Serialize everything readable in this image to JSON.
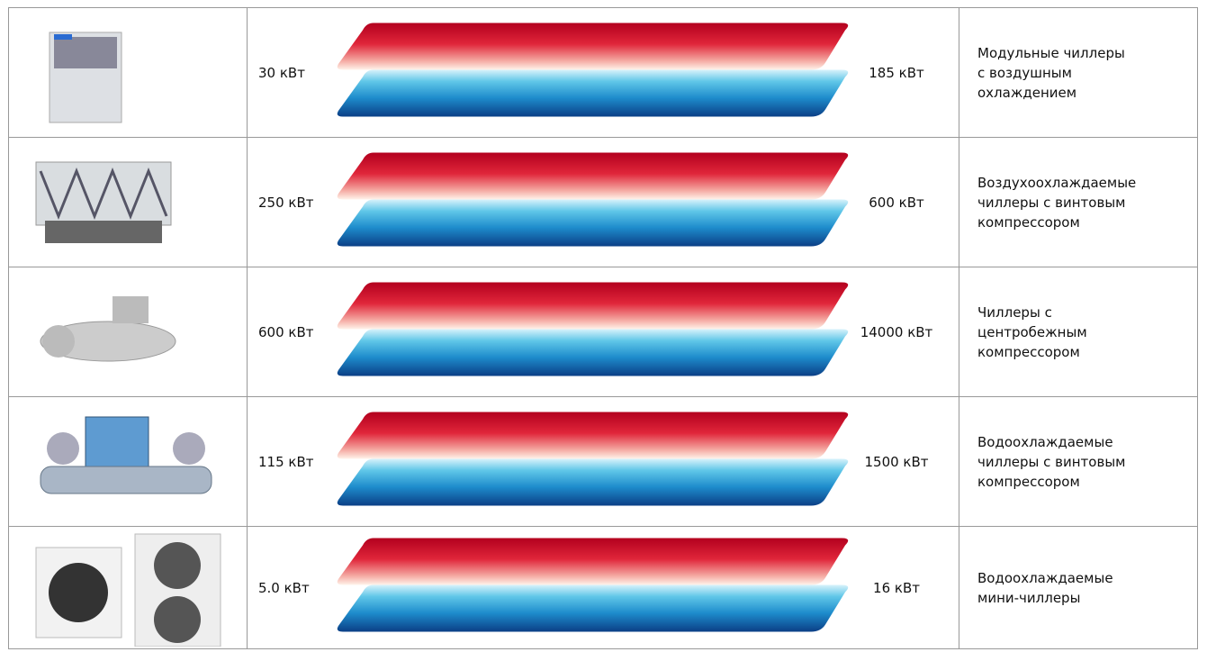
{
  "table": {
    "rows": [
      {
        "min": "30 кВт",
        "max": "185 кВт",
        "description": [
          "Модульные чиллеры",
          "с воздушным",
          "охлаждением"
        ]
      },
      {
        "min": "250 кВт",
        "max": "600 кВт",
        "description": [
          "Воздухоохлаждаемые",
          "чиллеры с винтовым",
          "компрессором"
        ]
      },
      {
        "min": "600 кВт",
        "max": "14000 кВт",
        "description": [
          "Чиллеры с",
          "центробежным",
          "компрессором"
        ]
      },
      {
        "min": "115 кВт",
        "max": "1500 кВт",
        "description": [
          "Водоохлаждаемые",
          "чиллеры с винтовым",
          "компрессором"
        ]
      },
      {
        "min": "5.0 кВт",
        "max": "16 кВт",
        "description": [
          "Водоохлаждаемые",
          "мини-чиллеры"
        ]
      }
    ]
  }
}
